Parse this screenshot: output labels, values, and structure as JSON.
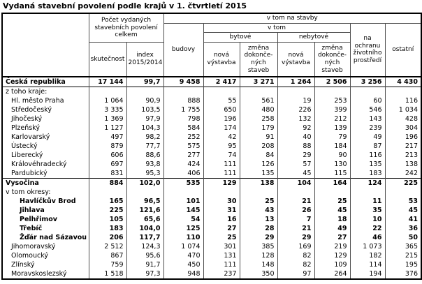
{
  "title": "Vydaná stavební povolení podle krajů v 1. čtvrtletí 2015",
  "table": {
    "header": {
      "region_column": "",
      "total_permits_group": "Počet vydaných stavebních povolení celkem",
      "reality": "skutečnost",
      "index": "index 2015/2014",
      "on_buildings_group": "v tom na stavby",
      "buildings": "budovy",
      "of_which": "v tom",
      "residential": "bytové",
      "non_residential": "nebytové",
      "new_construction": "nová výstavba",
      "change_of_completed": "změna dokonče-ných staveb",
      "environment": "na ochranu životního prostředí",
      "other": "ostatní"
    },
    "rows": [
      {
        "name": "Česká republika",
        "indent": 0,
        "bold": true,
        "values": [
          "17 144",
          "99,7",
          "9 458",
          "2 417",
          "3 271",
          "1 264",
          "2 506",
          "3 256",
          "4 430"
        ]
      },
      {
        "name": "z toho kraje:",
        "indent": 0,
        "bold": false,
        "label_row": true,
        "rule_above": true,
        "values": []
      },
      {
        "name": "Hl. město Praha",
        "indent": 1,
        "bold": false,
        "values": [
          "1 064",
          "90,9",
          "888",
          "55",
          "561",
          "19",
          "253",
          "60",
          "116"
        ]
      },
      {
        "name": "Středočeský",
        "indent": 1,
        "bold": false,
        "values": [
          "3 335",
          "103,5",
          "1 755",
          "650",
          "480",
          "226",
          "399",
          "546",
          "1 034"
        ]
      },
      {
        "name": "Jihočeský",
        "indent": 1,
        "bold": false,
        "values": [
          "1 369",
          "97,9",
          "798",
          "196",
          "258",
          "132",
          "212",
          "143",
          "428"
        ]
      },
      {
        "name": "Plzeňský",
        "indent": 1,
        "bold": false,
        "values": [
          "1 127",
          "104,3",
          "584",
          "174",
          "179",
          "92",
          "139",
          "239",
          "304"
        ]
      },
      {
        "name": "Karlovarský",
        "indent": 1,
        "bold": false,
        "values": [
          "497",
          "98,2",
          "252",
          "42",
          "91",
          "40",
          "79",
          "49",
          "196"
        ]
      },
      {
        "name": "Ústecký",
        "indent": 1,
        "bold": false,
        "values": [
          "879",
          "77,7",
          "575",
          "95",
          "208",
          "88",
          "184",
          "87",
          "217"
        ]
      },
      {
        "name": "Liberecký",
        "indent": 1,
        "bold": false,
        "values": [
          "606",
          "88,6",
          "277",
          "74",
          "84",
          "29",
          "90",
          "116",
          "213"
        ]
      },
      {
        "name": "Královéhradecký",
        "indent": 1,
        "bold": false,
        "values": [
          "697",
          "93,8",
          "424",
          "111",
          "126",
          "57",
          "130",
          "135",
          "138"
        ]
      },
      {
        "name": "Pardubický",
        "indent": 1,
        "bold": false,
        "values": [
          "831",
          "95,3",
          "406",
          "111",
          "135",
          "45",
          "115",
          "183",
          "242"
        ]
      },
      {
        "name": "Vysočina",
        "indent": 0,
        "bold": true,
        "rule_above": true,
        "values": [
          "884",
          "102,0",
          "535",
          "129",
          "138",
          "104",
          "164",
          "124",
          "225"
        ]
      },
      {
        "name": "v tom okresy:",
        "indent": 0,
        "bold": false,
        "label_row": true,
        "values": []
      },
      {
        "name": "Havlíčkův Brod",
        "indent": 2,
        "bold": true,
        "values": [
          "165",
          "96,5",
          "101",
          "30",
          "25",
          "21",
          "25",
          "11",
          "53"
        ]
      },
      {
        "name": "Jihlava",
        "indent": 2,
        "bold": true,
        "values": [
          "225",
          "121,6",
          "145",
          "31",
          "43",
          "26",
          "45",
          "35",
          "45"
        ]
      },
      {
        "name": "Pelhřimov",
        "indent": 2,
        "bold": true,
        "values": [
          "105",
          "65,6",
          "54",
          "16",
          "13",
          "7",
          "18",
          "10",
          "41"
        ]
      },
      {
        "name": "Třebíč",
        "indent": 2,
        "bold": true,
        "values": [
          "183",
          "104,0",
          "125",
          "27",
          "28",
          "21",
          "49",
          "22",
          "36"
        ]
      },
      {
        "name": "Žďár nad Sázavou",
        "indent": 2,
        "bold": true,
        "values": [
          "206",
          "117,7",
          "110",
          "25",
          "29",
          "29",
          "27",
          "46",
          "50"
        ]
      },
      {
        "name": "Jihomoravský",
        "indent": 1,
        "bold": false,
        "values": [
          "2 512",
          "124,3",
          "1 074",
          "301",
          "385",
          "169",
          "219",
          "1 073",
          "365"
        ]
      },
      {
        "name": "Olomoucký",
        "indent": 1,
        "bold": false,
        "values": [
          "867",
          "95,6",
          "470",
          "131",
          "128",
          "82",
          "129",
          "182",
          "215"
        ]
      },
      {
        "name": "Zlínský",
        "indent": 1,
        "bold": false,
        "values": [
          "759",
          "91,7",
          "450",
          "111",
          "148",
          "82",
          "109",
          "114",
          "195"
        ]
      },
      {
        "name": "Moravskoslezský",
        "indent": 1,
        "bold": false,
        "values": [
          "1 518",
          "97,3",
          "948",
          "237",
          "350",
          "97",
          "264",
          "194",
          "376"
        ]
      }
    ]
  }
}
